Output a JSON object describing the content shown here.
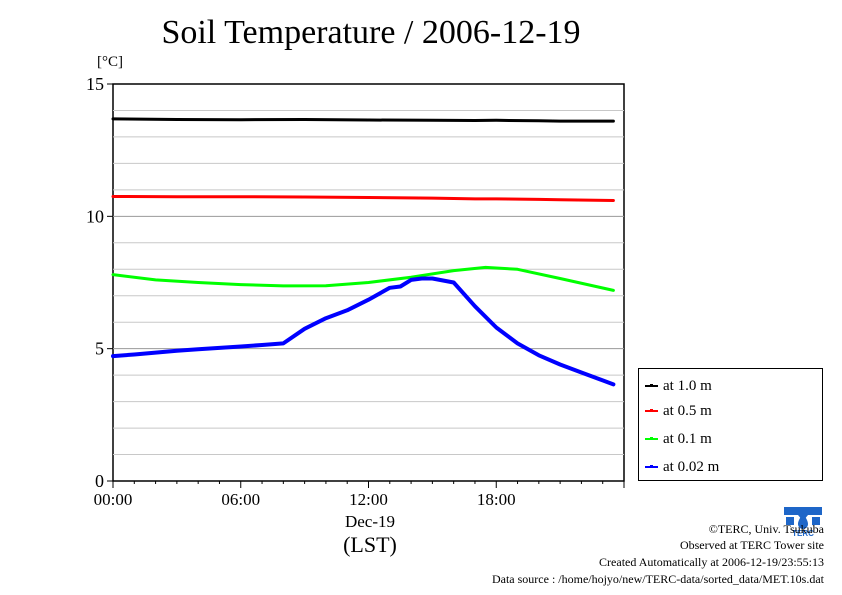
{
  "chart_data": {
    "type": "line",
    "title": "Soil Temperature / 2006-12-19",
    "ylabel": "[°C]",
    "xlabel": "(LST)",
    "date_label": "Dec-19",
    "ylim": [
      0,
      15
    ],
    "xlim_hours": [
      0,
      24
    ],
    "yticks": [
      "0",
      "5",
      "10",
      "15"
    ],
    "xticks": [
      {
        "hour": 0,
        "label": "00:00"
      },
      {
        "hour": 6,
        "label": "06:00"
      },
      {
        "hour": 12,
        "label": "12:00"
      },
      {
        "hour": 18,
        "label": "18:00"
      }
    ],
    "grid": true,
    "legend_position": "right, lower",
    "series": [
      {
        "name": "at 1.0 m",
        "color": "#000000",
        "x": [
          0,
          3,
          6,
          9,
          12,
          15,
          17,
          18,
          20,
          21,
          23.5
        ],
        "y": [
          13.68,
          13.66,
          13.65,
          13.66,
          13.64,
          13.63,
          13.62,
          13.63,
          13.61,
          13.6,
          13.6
        ]
      },
      {
        "name": "at 0.5 m",
        "color": "#ff0000",
        "x": [
          0,
          3,
          6,
          9,
          12,
          15,
          17,
          18,
          20,
          21,
          23.5
        ],
        "y": [
          10.75,
          10.74,
          10.74,
          10.73,
          10.71,
          10.69,
          10.66,
          10.66,
          10.64,
          10.63,
          10.6
        ]
      },
      {
        "name": "at 0.1 m",
        "color": "#00ff00",
        "x": [
          0,
          2,
          4,
          6,
          8,
          10,
          12,
          14,
          16,
          17.5,
          19,
          21,
          23.5
        ],
        "y": [
          7.8,
          7.6,
          7.5,
          7.42,
          7.37,
          7.38,
          7.5,
          7.7,
          7.95,
          8.07,
          8.0,
          7.65,
          7.2
        ]
      },
      {
        "name": "at 0.02 m",
        "color": "#0000ff",
        "x": [
          0,
          1,
          2,
          3,
          4,
          5,
          6,
          7,
          8,
          9,
          10,
          11,
          12,
          13,
          13.5,
          14,
          14.5,
          15,
          16,
          17,
          18,
          19,
          20,
          21,
          22,
          23,
          23.5
        ],
        "y": [
          4.72,
          4.78,
          4.85,
          4.92,
          4.98,
          5.03,
          5.08,
          5.14,
          5.2,
          5.75,
          6.15,
          6.45,
          6.85,
          7.3,
          7.35,
          7.6,
          7.65,
          7.65,
          7.5,
          6.6,
          5.8,
          5.2,
          4.75,
          4.4,
          4.1,
          3.8,
          3.65
        ]
      }
    ]
  },
  "footer": {
    "copyright": "©TERC, Univ. Tsukuba",
    "observed": "Observed at TERC Tower site",
    "created": "Created Automatically at 2006-12-19/23:55:13",
    "source": "Data source : /home/hojyo/new/TERC-data/sorted_data/MET.10s.dat"
  },
  "logo": {
    "text": "TERC",
    "color": "#1e66c8",
    "icon": "terc-logo-icon"
  }
}
